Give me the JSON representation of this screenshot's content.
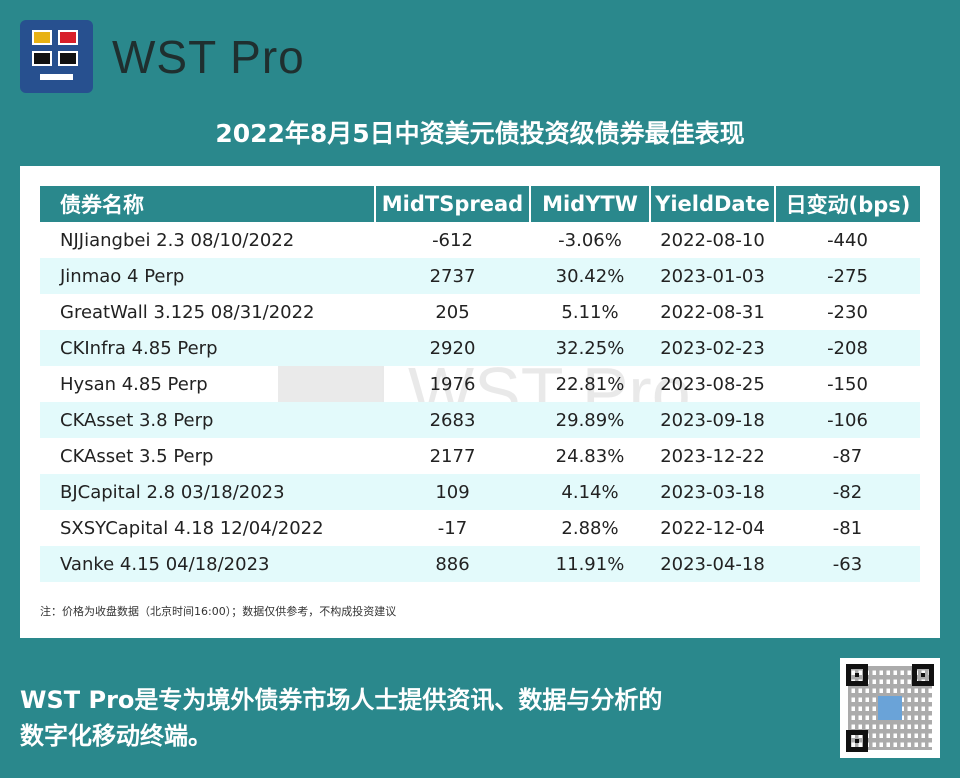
{
  "brand": {
    "logo_text": "WST Pro",
    "colors": {
      "background": "#2a888c",
      "logo_bg": "#27508f",
      "logo_yellow": "#e8b214",
      "logo_red": "#d8202a"
    }
  },
  "headline": "2022年8月5日中资美元债投资级债券最佳表现",
  "table": {
    "columns": [
      "债券名称",
      "MidTSpread",
      "MidYTW",
      "YieldDate",
      "日变动(bps)"
    ],
    "rows": [
      [
        "NJJiangbei 2.3 08/10/2022",
        "-612",
        "-3.06%",
        "2022-08-10",
        "-440"
      ],
      [
        "Jinmao 4 Perp",
        "2737",
        "30.42%",
        "2023-01-03",
        "-275"
      ],
      [
        "GreatWall 3.125 08/31/2022",
        "205",
        "5.11%",
        "2022-08-31",
        "-230"
      ],
      [
        "CKInfra 4.85 Perp",
        "2920",
        "32.25%",
        "2023-02-23",
        "-208"
      ],
      [
        "Hysan 4.85 Perp",
        "1976",
        "22.81%",
        "2023-08-25",
        "-150"
      ],
      [
        "CKAsset 3.8 Perp",
        "2683",
        "29.89%",
        "2023-09-18",
        "-106"
      ],
      [
        "CKAsset 3.5 Perp",
        "2177",
        "24.83%",
        "2023-12-22",
        "-87"
      ],
      [
        "BJCapital 2.8 03/18/2023",
        "109",
        "4.14%",
        "2023-03-18",
        "-82"
      ],
      [
        "SXSYCapital 4.18 12/04/2022",
        "-17",
        "2.88%",
        "2022-12-04",
        "-81"
      ],
      [
        "Vanke 4.15 04/18/2023",
        "886",
        "11.91%",
        "2023-04-18",
        "-63"
      ]
    ]
  },
  "watermark_text": "WST Pro",
  "note": "注：价格为收盘数据（北京时间16:00）；数据仅供参考，不构成投资建议",
  "footer": {
    "line1": "WST Pro是专为境外债券市场人士提供资讯、数据与分析的",
    "line2": "数字化移动终端。"
  },
  "qr_icon": "qr-code-icon"
}
